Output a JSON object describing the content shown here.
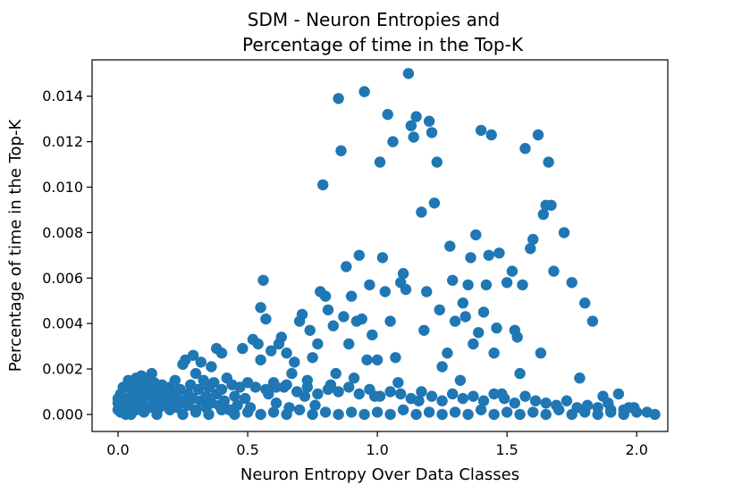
{
  "chart_data": {
    "type": "scatter",
    "title_lines": [
      "SDM - Neuron Entropies and",
      "Percentage of time in the Top-K"
    ],
    "xlabel": "Neuron Entropy Over Data Classes",
    "ylabel": "Percentage of time in the Top-K",
    "xlim": [
      -0.1,
      2.12
    ],
    "ylim": [
      -0.00075,
      0.0156
    ],
    "x_ticks": [
      {
        "value": 0.0,
        "label": "0.0"
      },
      {
        "value": 0.5,
        "label": "0.5"
      },
      {
        "value": 1.0,
        "label": "1.0"
      },
      {
        "value": 1.5,
        "label": "1.5"
      },
      {
        "value": 2.0,
        "label": "2.0"
      }
    ],
    "y_ticks": [
      {
        "value": 0.0,
        "label": "0.000"
      },
      {
        "value": 0.002,
        "label": "0.002"
      },
      {
        "value": 0.004,
        "label": "0.004"
      },
      {
        "value": 0.006,
        "label": "0.006"
      },
      {
        "value": 0.008,
        "label": "0.008"
      },
      {
        "value": 0.01,
        "label": "0.010"
      },
      {
        "value": 0.012,
        "label": "0.012"
      },
      {
        "value": 0.014,
        "label": "0.014"
      }
    ],
    "grid": false,
    "marker_color": "#1f77b4",
    "points": [
      [
        0.0,
        0.0002
      ],
      [
        0.0,
        0.0005
      ],
      [
        0.0,
        0.0007
      ],
      [
        0.01,
        0.0001
      ],
      [
        0.01,
        0.0009
      ],
      [
        0.02,
        0.0004
      ],
      [
        0.02,
        0.0012
      ],
      [
        0.03,
        0.0
      ],
      [
        0.03,
        0.0006
      ],
      [
        0.04,
        0.0015
      ],
      [
        0.04,
        0.0003
      ],
      [
        0.05,
        0.0008
      ],
      [
        0.05,
        0.0011
      ],
      [
        0.06,
        0.0014
      ],
      [
        0.06,
        0.0005
      ],
      [
        0.07,
        0.0016
      ],
      [
        0.07,
        0.0002
      ],
      [
        0.08,
        0.0009
      ],
      [
        0.08,
        0.0013
      ],
      [
        0.09,
        0.0006
      ],
      [
        0.09,
        0.0017
      ],
      [
        0.1,
        0.0011
      ],
      [
        0.1,
        0.0004
      ],
      [
        0.11,
        0.0015
      ],
      [
        0.11,
        0.0008
      ],
      [
        0.12,
        0.0012
      ],
      [
        0.12,
        0.0003
      ],
      [
        0.13,
        0.0018
      ],
      [
        0.13,
        0.001
      ],
      [
        0.14,
        0.0005
      ],
      [
        0.14,
        0.0014
      ],
      [
        0.15,
        0.0007
      ],
      [
        0.15,
        0.0011
      ],
      [
        0.16,
        0.0003
      ],
      [
        0.16,
        0.0009
      ],
      [
        0.17,
        0.0013
      ],
      [
        0.17,
        0.0006
      ],
      [
        0.18,
        0.001
      ],
      [
        0.19,
        0.0004
      ],
      [
        0.19,
        0.0008
      ],
      [
        0.2,
        0.0012
      ],
      [
        0.21,
        0.0005
      ],
      [
        0.21,
        0.0009
      ],
      [
        0.22,
        0.0015
      ],
      [
        0.23,
        0.0007
      ],
      [
        0.23,
        0.0003
      ],
      [
        0.24,
        0.0011
      ],
      [
        0.25,
        0.0022
      ],
      [
        0.25,
        0.0006
      ],
      [
        0.26,
        0.0024
      ],
      [
        0.27,
        0.0009
      ],
      [
        0.27,
        0.0004
      ],
      [
        0.28,
        0.0013
      ],
      [
        0.29,
        0.0026
      ],
      [
        0.29,
        0.0007
      ],
      [
        0.3,
        0.0018
      ],
      [
        0.3,
        0.0002
      ],
      [
        0.31,
        0.0011
      ],
      [
        0.32,
        0.0023
      ],
      [
        0.32,
        0.0006
      ],
      [
        0.33,
        0.0015
      ],
      [
        0.34,
        0.0008
      ],
      [
        0.34,
        0.0003
      ],
      [
        0.35,
        0.0012
      ],
      [
        0.36,
        0.0021
      ],
      [
        0.36,
        0.0005
      ],
      [
        0.37,
        0.0014
      ],
      [
        0.38,
        0.0029
      ],
      [
        0.38,
        0.0009
      ],
      [
        0.39,
        0.0004
      ],
      [
        0.4,
        0.0027
      ],
      [
        0.4,
        0.0011
      ],
      [
        0.41,
        0.0006
      ],
      [
        0.42,
        0.0016
      ],
      [
        0.43,
        0.0002
      ],
      [
        0.44,
        0.0013
      ],
      [
        0.45,
        0.0008
      ],
      [
        0.46,
        0.0004
      ],
      [
        0.47,
        0.0012
      ],
      [
        0.48,
        0.0029
      ],
      [
        0.49,
        0.0007
      ],
      [
        0.5,
        0.0014
      ],
      [
        0.51,
        0.0003
      ],
      [
        0.52,
        0.0033
      ],
      [
        0.53,
        0.0012
      ],
      [
        0.54,
        0.0031
      ],
      [
        0.55,
        0.0047
      ],
      [
        0.55,
        0.0024
      ],
      [
        0.56,
        0.0059
      ],
      [
        0.57,
        0.0042
      ],
      [
        0.58,
        0.0009
      ],
      [
        0.59,
        0.0028
      ],
      [
        0.6,
        0.0014
      ],
      [
        0.61,
        0.0005
      ],
      [
        0.62,
        0.0031
      ],
      [
        0.63,
        0.0034
      ],
      [
        0.64,
        0.0012
      ],
      [
        0.65,
        0.0027
      ],
      [
        0.66,
        0.0003
      ],
      [
        0.67,
        0.0018
      ],
      [
        0.68,
        0.0023
      ],
      [
        0.7,
        0.0041
      ],
      [
        0.71,
        0.0044
      ],
      [
        0.72,
        0.0008
      ],
      [
        0.73,
        0.0015
      ],
      [
        0.74,
        0.0037
      ],
      [
        0.75,
        0.0025
      ],
      [
        0.76,
        0.0004
      ],
      [
        0.77,
        0.0031
      ],
      [
        0.78,
        0.0054
      ],
      [
        0.79,
        0.0101
      ],
      [
        0.8,
        0.0052
      ],
      [
        0.81,
        0.0046
      ],
      [
        0.82,
        0.0013
      ],
      [
        0.83,
        0.0039
      ],
      [
        0.84,
        0.0018
      ],
      [
        0.85,
        0.0139
      ],
      [
        0.86,
        0.0116
      ],
      [
        0.87,
        0.0043
      ],
      [
        0.88,
        0.0065
      ],
      [
        0.89,
        0.0031
      ],
      [
        0.9,
        0.0052
      ],
      [
        0.91,
        0.0016
      ],
      [
        0.92,
        0.0041
      ],
      [
        0.93,
        0.007
      ],
      [
        0.94,
        0.0042
      ],
      [
        0.95,
        0.0142
      ],
      [
        0.96,
        0.0024
      ],
      [
        0.97,
        0.0057
      ],
      [
        0.98,
        0.0035
      ],
      [
        0.99,
        0.0008
      ],
      [
        1.0,
        0.0024
      ],
      [
        1.01,
        0.0111
      ],
      [
        1.02,
        0.0069
      ],
      [
        1.03,
        0.0054
      ],
      [
        1.04,
        0.0132
      ],
      [
        1.05,
        0.0041
      ],
      [
        1.06,
        0.012
      ],
      [
        1.07,
        0.0025
      ],
      [
        1.08,
        0.0014
      ],
      [
        1.09,
        0.0058
      ],
      [
        1.1,
        0.0062
      ],
      [
        1.11,
        0.0055
      ],
      [
        1.12,
        0.015
      ],
      [
        1.13,
        0.0127
      ],
      [
        1.14,
        0.0122
      ],
      [
        1.15,
        0.0131
      ],
      [
        1.16,
        0.0006
      ],
      [
        1.17,
        0.0089
      ],
      [
        1.18,
        0.0037
      ],
      [
        1.19,
        0.0054
      ],
      [
        1.2,
        0.0129
      ],
      [
        1.21,
        0.0124
      ],
      [
        1.22,
        0.0093
      ],
      [
        1.23,
        0.0111
      ],
      [
        1.24,
        0.0046
      ],
      [
        1.25,
        0.0021
      ],
      [
        1.27,
        0.0027
      ],
      [
        1.28,
        0.0074
      ],
      [
        1.29,
        0.0059
      ],
      [
        1.3,
        0.0041
      ],
      [
        1.32,
        0.0015
      ],
      [
        1.33,
        0.0049
      ],
      [
        1.34,
        0.0043
      ],
      [
        1.35,
        0.0057
      ],
      [
        1.36,
        0.0069
      ],
      [
        1.37,
        0.0031
      ],
      [
        1.38,
        0.0079
      ],
      [
        1.39,
        0.0036
      ],
      [
        1.4,
        0.0125
      ],
      [
        1.41,
        0.0045
      ],
      [
        1.42,
        0.0057
      ],
      [
        1.43,
        0.007
      ],
      [
        1.44,
        0.0123
      ],
      [
        1.45,
        0.0027
      ],
      [
        1.46,
        0.0038
      ],
      [
        1.47,
        0.0071
      ],
      [
        1.48,
        0.0009
      ],
      [
        1.5,
        0.0058
      ],
      [
        1.52,
        0.0063
      ],
      [
        1.53,
        0.0037
      ],
      [
        1.54,
        0.0034
      ],
      [
        1.55,
        0.0018
      ],
      [
        1.56,
        0.0057
      ],
      [
        1.57,
        0.0117
      ],
      [
        1.59,
        0.0073
      ],
      [
        1.6,
        0.0077
      ],
      [
        1.62,
        0.0123
      ],
      [
        1.63,
        0.0027
      ],
      [
        1.64,
        0.0088
      ],
      [
        1.65,
        0.0092
      ],
      [
        1.66,
        0.0111
      ],
      [
        1.67,
        0.0092
      ],
      [
        1.68,
        0.0063
      ],
      [
        1.72,
        0.008
      ],
      [
        1.75,
        0.0058
      ],
      [
        1.78,
        0.0016
      ],
      [
        1.8,
        0.0049
      ],
      [
        1.83,
        0.0041
      ],
      [
        1.87,
        0.0008
      ],
      [
        1.9,
        0.0002
      ],
      [
        1.93,
        0.0009
      ],
      [
        1.97,
        0.0003
      ],
      [
        2.04,
        0.0001
      ],
      [
        2.07,
        0.0
      ],
      [
        0.05,
        0.0
      ],
      [
        0.1,
        0.0001
      ],
      [
        0.15,
        0.0
      ],
      [
        0.2,
        0.0002
      ],
      [
        0.25,
        0.0
      ],
      [
        0.3,
        0.0001
      ],
      [
        0.35,
        0.0
      ],
      [
        0.4,
        0.0002
      ],
      [
        0.45,
        0.0
      ],
      [
        0.5,
        0.0001
      ],
      [
        0.55,
        0.0
      ],
      [
        0.6,
        0.0001
      ],
      [
        0.65,
        0.0
      ],
      [
        0.7,
        0.0002
      ],
      [
        0.75,
        0.0
      ],
      [
        0.8,
        0.0001
      ],
      [
        0.85,
        0.0
      ],
      [
        0.9,
        0.0001
      ],
      [
        0.95,
        0.0
      ],
      [
        1.0,
        0.0001
      ],
      [
        1.05,
        0.0
      ],
      [
        1.1,
        0.0002
      ],
      [
        1.15,
        0.0
      ],
      [
        1.2,
        0.0001
      ],
      [
        1.25,
        0.0
      ],
      [
        1.3,
        0.0001
      ],
      [
        1.35,
        0.0
      ],
      [
        1.4,
        0.0002
      ],
      [
        1.45,
        0.0
      ],
      [
        1.5,
        0.0001
      ],
      [
        1.55,
        0.0
      ],
      [
        1.6,
        0.0001
      ],
      [
        1.65,
        0.0
      ],
      [
        1.7,
        0.0002
      ],
      [
        1.75,
        0.0
      ],
      [
        1.8,
        0.0001
      ],
      [
        1.85,
        0.0
      ],
      [
        1.9,
        0.0001
      ],
      [
        1.95,
        0.0
      ],
      [
        2.0,
        0.0001
      ],
      [
        0.57,
        0.0011
      ],
      [
        0.61,
        0.0012
      ],
      [
        0.65,
        0.0013
      ],
      [
        0.69,
        0.001
      ],
      [
        0.73,
        0.0012
      ],
      [
        0.77,
        0.0009
      ],
      [
        0.81,
        0.0011
      ],
      [
        0.85,
        0.001
      ],
      [
        0.89,
        0.0012
      ],
      [
        0.93,
        0.0009
      ],
      [
        0.97,
        0.0011
      ],
      [
        1.01,
        0.0008
      ],
      [
        1.05,
        0.001
      ],
      [
        1.09,
        0.0009
      ],
      [
        1.13,
        0.0007
      ],
      [
        1.17,
        0.001
      ],
      [
        1.21,
        0.0008
      ],
      [
        1.25,
        0.0006
      ],
      [
        1.29,
        0.0009
      ],
      [
        1.33,
        0.0007
      ],
      [
        1.37,
        0.0008
      ],
      [
        1.41,
        0.0006
      ],
      [
        1.45,
        0.0009
      ],
      [
        1.49,
        0.0007
      ],
      [
        1.53,
        0.0005
      ],
      [
        1.57,
        0.0008
      ],
      [
        1.61,
        0.0006
      ],
      [
        1.65,
        0.0005
      ],
      [
        1.69,
        0.0004
      ],
      [
        1.73,
        0.0006
      ],
      [
        1.77,
        0.0003
      ],
      [
        1.81,
        0.0004
      ],
      [
        1.85,
        0.0003
      ],
      [
        1.89,
        0.0005
      ],
      [
        1.95,
        0.0002
      ],
      [
        1.99,
        0.0003
      ]
    ]
  }
}
